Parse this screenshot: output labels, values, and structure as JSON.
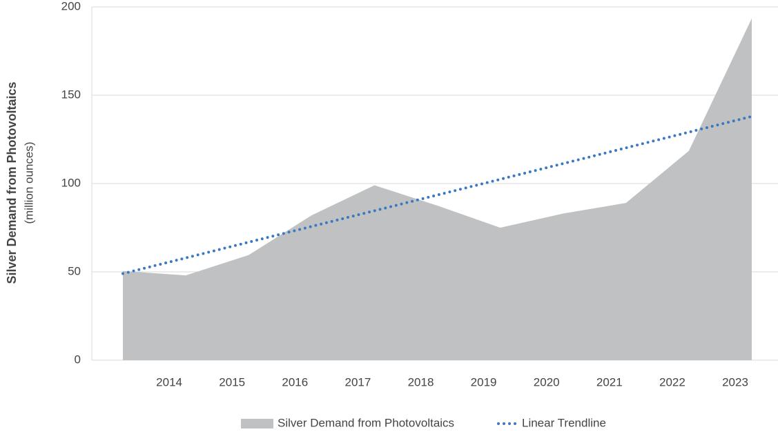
{
  "chart_data": {
    "type": "area",
    "y_label": "Silver Demand from Photovoltaics",
    "y_sublabel": "(million ounces)",
    "categories": [
      null,
      "2014",
      "2015",
      "2016",
      "2017",
      "2018",
      "2019",
      "2020",
      "2021",
      "2022",
      "2023"
    ],
    "series": [
      {
        "name": "Silver Demand from Photovoltaics",
        "color": "#bfc1c3",
        "kind": "area",
        "values": [
          50.5,
          48,
          59.5,
          82,
          99,
          87.5,
          75,
          83,
          89,
          118.5,
          193.5
        ]
      },
      {
        "name": "Linear Trendline",
        "color": "#3a78c3",
        "kind": "dotted-line",
        "values": [
          49,
          57.9,
          66.8,
          75.7,
          84.6,
          93.5,
          102.4,
          111.3,
          120.2,
          129.1,
          138
        ]
      }
    ],
    "ylim": [
      0,
      200
    ],
    "yticks": [
      0,
      50,
      100,
      150,
      200
    ],
    "grid": true,
    "legend": "bottom"
  }
}
